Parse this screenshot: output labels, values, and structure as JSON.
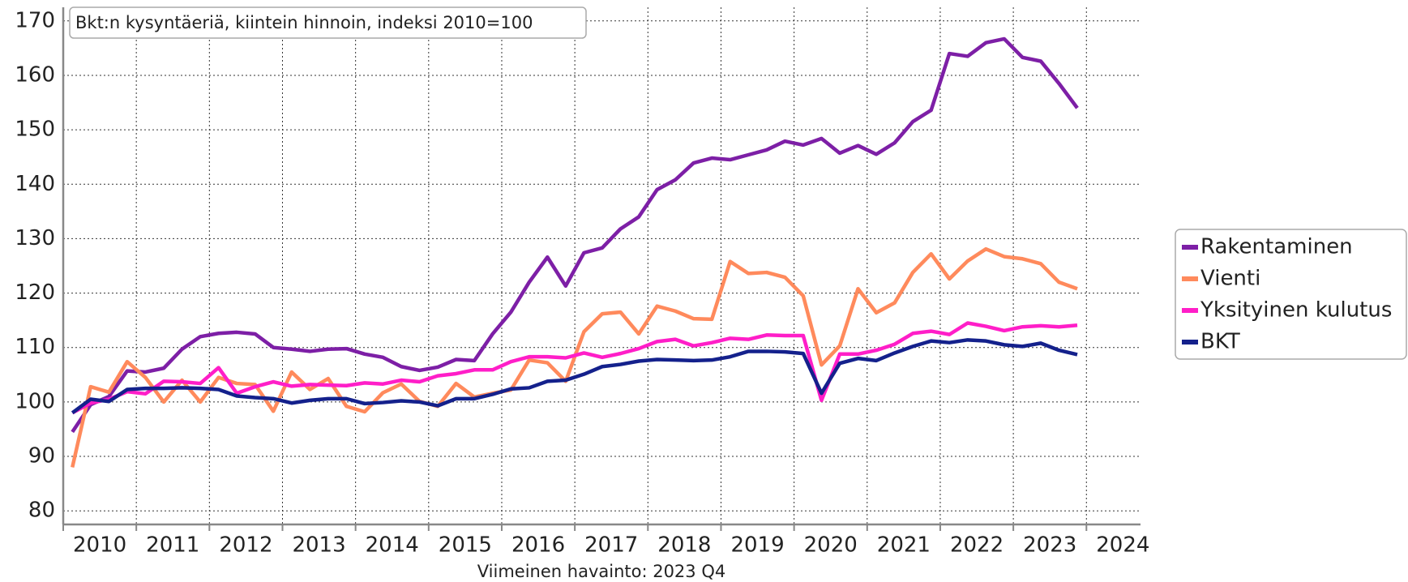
{
  "chart_data": {
    "type": "line",
    "title": "Bkt:n kysyntäeriä, kiintein hinnoin, indeksi 2010=100",
    "note": "Viimeinen havainto: 2023 Q4",
    "x": [
      "2010 Q1",
      "2010 Q2",
      "2010 Q3",
      "2010 Q4",
      "2011 Q1",
      "2011 Q2",
      "2011 Q3",
      "2011 Q4",
      "2012 Q1",
      "2012 Q2",
      "2012 Q3",
      "2012 Q4",
      "2013 Q1",
      "2013 Q2",
      "2013 Q3",
      "2013 Q4",
      "2014 Q1",
      "2014 Q2",
      "2014 Q3",
      "2014 Q4",
      "2015 Q1",
      "2015 Q2",
      "2015 Q3",
      "2015 Q4",
      "2016 Q1",
      "2016 Q2",
      "2016 Q3",
      "2016 Q4",
      "2017 Q1",
      "2017 Q2",
      "2017 Q3",
      "2017 Q4",
      "2018 Q1",
      "2018 Q2",
      "2018 Q3",
      "2018 Q4",
      "2019 Q1",
      "2019 Q2",
      "2019 Q3",
      "2019 Q4",
      "2020 Q1",
      "2020 Q2",
      "2020 Q3",
      "2020 Q4",
      "2021 Q1",
      "2021 Q2",
      "2021 Q3",
      "2021 Q4",
      "2022 Q1",
      "2022 Q2",
      "2022 Q3",
      "2022 Q4",
      "2023 Q1",
      "2023 Q2",
      "2023 Q3",
      "2023 Q4"
    ],
    "series": [
      {
        "name": "Rakentaminen",
        "color": "#7d1fa6",
        "values": [
          94.5,
          99.5,
          101,
          105.7,
          105.5,
          106.2,
          109.7,
          112,
          112.6,
          112.8,
          112.5,
          110,
          109.7,
          109.3,
          109.7,
          109.8,
          108.8,
          108.2,
          106.5,
          105.8,
          106.4,
          107.8,
          107.6,
          112.5,
          116.5,
          122,
          126.6,
          121.3,
          127.4,
          128.3,
          131.8,
          134,
          139,
          140.8,
          143.9,
          144.8,
          144.5,
          145.4,
          146.3,
          147.9,
          147.2,
          148.4,
          145.7,
          147.1,
          145.5,
          147.6,
          151.5,
          153.6,
          164,
          163.5,
          166,
          166.7,
          163.3,
          162.6,
          158.5,
          154
        ]
      },
      {
        "name": "Vienti",
        "color": "#ff8a5c",
        "values": [
          88,
          102.8,
          101.8,
          107.4,
          104.5,
          100,
          104,
          100,
          104.5,
          103.4,
          103.2,
          98.3,
          105.5,
          102.3,
          104.3,
          99.2,
          98.2,
          101.7,
          103.3,
          100.1,
          99.2,
          103.4,
          100.9,
          101.6,
          102.2,
          107.7,
          107.2,
          103.8,
          112.9,
          116.2,
          116.5,
          112.5,
          117.6,
          116.7,
          115.3,
          115.2,
          125.8,
          123.6,
          123.8,
          122.9,
          119.5,
          106.8,
          110.3,
          120.8,
          116.4,
          118.2,
          123.8,
          127.2,
          122.6,
          125.9,
          128.1,
          126.7,
          126.3,
          125.4,
          122,
          120.8
        ]
      },
      {
        "name": "Yksityinen kulutus",
        "color": "#ff1ec8",
        "values": [
          98,
          99.8,
          100.5,
          101.9,
          101.5,
          103.8,
          103.7,
          103.4,
          106.3,
          101.6,
          102.8,
          103.7,
          102.9,
          103.2,
          103.1,
          103,
          103.5,
          103.3,
          104,
          103.7,
          104.8,
          105.2,
          105.9,
          105.9,
          107.4,
          108.3,
          108.3,
          108.1,
          109,
          108.2,
          108.9,
          109.8,
          111.1,
          111.5,
          110.3,
          110.9,
          111.7,
          111.5,
          112.3,
          112.2,
          112.2,
          100.3,
          108.8,
          108.8,
          109.5,
          110.6,
          112.6,
          113,
          112.4,
          114.5,
          113.9,
          113.1,
          113.8,
          114,
          113.8,
          114.1
        ]
      },
      {
        "name": "BKT",
        "color": "#14218c",
        "values": [
          98,
          100.5,
          100.1,
          102.3,
          102.5,
          102.5,
          102.6,
          102.5,
          102.3,
          101.1,
          100.8,
          100.6,
          99.8,
          100.3,
          100.6,
          100.6,
          99.7,
          99.9,
          100.2,
          100,
          99.3,
          100.6,
          100.6,
          101.4,
          102.4,
          102.6,
          103.8,
          104,
          105.1,
          106.5,
          106.9,
          107.5,
          107.8,
          107.7,
          107.6,
          107.7,
          108.3,
          109.3,
          109.3,
          109.2,
          108.9,
          101.6,
          107.1,
          108,
          107.6,
          109,
          110.2,
          111.2,
          110.9,
          111.4,
          111.2,
          110.5,
          110.2,
          110.8,
          109.5,
          108.7
        ]
      }
    ],
    "xlim": [
      2010,
      2024.74
    ],
    "xticks": [
      2010,
      2011,
      2012,
      2013,
      2014,
      2015,
      2016,
      2017,
      2018,
      2019,
      2020,
      2021,
      2022,
      2023,
      2024
    ],
    "ylim": [
      77.5,
      172.5
    ],
    "yticks": [
      80,
      90,
      100,
      110,
      120,
      130,
      140,
      150,
      160,
      170
    ],
    "grid": true,
    "legend": "right"
  }
}
